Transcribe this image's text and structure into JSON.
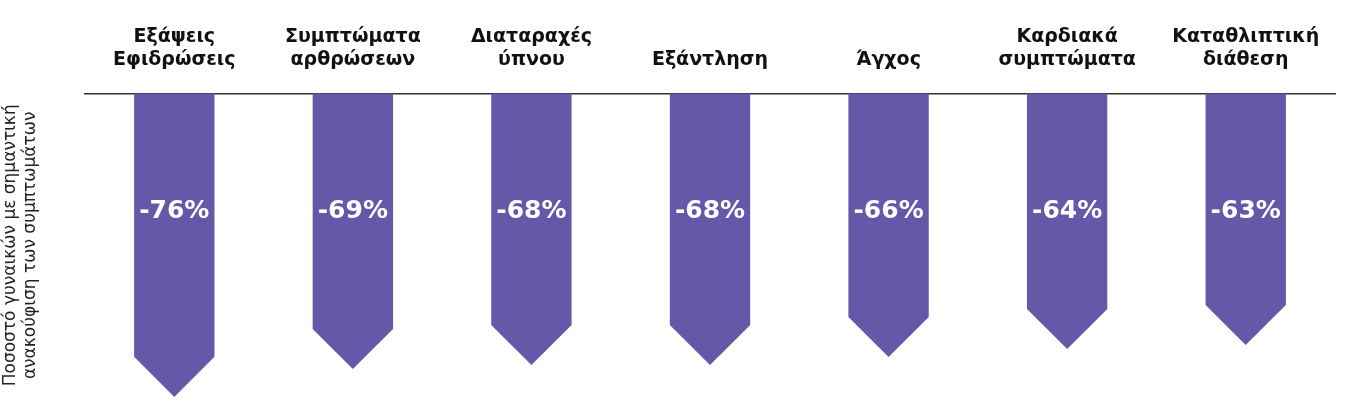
{
  "chart_data": {
    "type": "bar",
    "ylabel": "Ποσοστό γυναικών με σημαντική ανακούφιση των συμπτωμάτων",
    "categories": [
      "Εξάψεις Εφιδρώσεις",
      "Συμπτώματα αρθρώσεων",
      "Διαταραχές ύπνου",
      "Εξάντληση",
      "Άγχος",
      "Καρδιακά συμπτώματα",
      "Καταθλιπτική διάθεση"
    ],
    "values": [
      -76,
      -69,
      -68,
      -68,
      -66,
      -64,
      -63
    ],
    "value_labels": [
      "-76%",
      "-69%",
      "-68%",
      "-68%",
      "-66%",
      "-64%",
      "-63%"
    ],
    "color": "#6757a8",
    "grid": false,
    "legend": false
  }
}
